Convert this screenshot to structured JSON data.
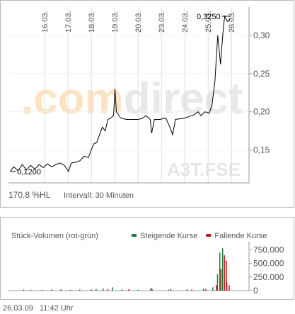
{
  "chart_data": [
    {
      "type": "line",
      "watermark": [
        ".com",
        "direct"
      ],
      "watermark_colors": [
        "#fbe3c4",
        "#e8e8e8"
      ],
      "symbol": "A3T.FSE",
      "info": [
        "170,8 %HL",
        "Intervall: 30 Minuten"
      ],
      "annotations": [
        "0,1200",
        "0,3250"
      ],
      "xlim": [
        -0.55,
        9.75
      ],
      "xticks": [
        {
          "value": 1,
          "label": "16.03."
        },
        {
          "value": 2,
          "label": "17.03."
        },
        {
          "value": 3,
          "label": "18.03."
        },
        {
          "value": 4,
          "label": "19.03."
        },
        {
          "value": 5,
          "label": "20.03."
        },
        {
          "value": 6,
          "label": "23.03."
        },
        {
          "value": 7,
          "label": "24.03."
        },
        {
          "value": 8,
          "label": "25.03."
        },
        {
          "value": 9,
          "label": "26.03."
        }
      ],
      "ylim": [
        0.107,
        0.337
      ],
      "yticks": [
        {
          "value": 0.15,
          "label": "0,15"
        },
        {
          "value": 0.2,
          "label": "0,20"
        },
        {
          "value": 0.25,
          "label": "0,25"
        },
        {
          "value": 0.3,
          "label": "0,30"
        }
      ],
      "grid": true,
      "series": [
        {
          "color": "#000000",
          "x": [
            -0.48,
            -0.33,
            -0.14,
            0.04,
            0.22,
            0.4,
            0.58,
            0.76,
            0.94,
            1.12,
            1.3,
            1.48,
            1.66,
            1.84,
            2.02,
            2.14,
            2.33,
            2.51,
            2.69,
            2.87,
            2.99,
            3.11,
            3.23,
            3.35,
            3.47,
            3.59,
            3.71,
            3.83,
            3.95,
            4.01,
            4.07,
            4.25,
            4.49,
            4.73,
            4.98,
            5.16,
            5.34,
            5.52,
            5.58,
            5.7,
            5.94,
            6.18,
            6.36,
            6.48,
            6.6,
            6.84,
            7.02,
            7.2,
            7.39,
            7.57,
            7.69,
            7.87,
            8.05,
            8.17,
            8.29,
            8.41,
            8.53,
            8.65,
            8.71,
            8.83,
            8.95
          ],
          "values": [
            0.122,
            0.128,
            0.123,
            0.131,
            0.124,
            0.13,
            0.125,
            0.131,
            0.127,
            0.132,
            0.128,
            0.131,
            0.133,
            0.13,
            0.122,
            0.133,
            0.134,
            0.136,
            0.142,
            0.14,
            0.15,
            0.158,
            0.16,
            0.17,
            0.18,
            0.175,
            0.19,
            0.192,
            0.195,
            0.23,
            0.2,
            0.192,
            0.19,
            0.19,
            0.19,
            0.191,
            0.195,
            0.19,
            0.172,
            0.19,
            0.19,
            0.192,
            0.18,
            0.17,
            0.19,
            0.191,
            0.192,
            0.194,
            0.196,
            0.2,
            0.195,
            0.2,
            0.198,
            0.21,
            0.24,
            0.3,
            0.262,
            0.31,
            0.325,
            0.318,
            0.322
          ]
        }
      ]
    },
    {
      "type": "bar",
      "title": "Stück-Volumen (rot-grün)",
      "xlim": [
        -0.55,
        9.75
      ],
      "ylim": [
        0,
        900000
      ],
      "yticks": [
        0,
        {
          "value": 250000,
          "label": "250.000"
        },
        {
          "value": 500000,
          "label": "500.000"
        },
        {
          "value": 750000,
          "label": "750.000"
        }
      ],
      "series": [
        {
          "name": "Steigende Kurse",
          "color": "#1a7a3a",
          "x": [
            0.1,
            0.9,
            1.7,
            2.5,
            3.2,
            3.5,
            3.9,
            4.3,
            5.0,
            5.6,
            6.3,
            7.1,
            7.8,
            8.2,
            8.4,
            8.5,
            8.62,
            8.8
          ],
          "values": [
            20000,
            15000,
            25000,
            20000,
            30000,
            40000,
            60000,
            20000,
            15000,
            30000,
            20000,
            25000,
            40000,
            60000,
            300000,
            700000,
            780000,
            150000
          ]
        },
        {
          "name": "Fallende Kurse",
          "color": "#c0161b",
          "x": [
            0.4,
            1.3,
            2.1,
            3.0,
            3.7,
            4.6,
            5.55,
            6.4,
            7.3,
            7.9,
            8.35,
            8.55,
            8.7,
            8.78,
            8.9
          ],
          "values": [
            15000,
            20000,
            15000,
            20000,
            30000,
            25000,
            50000,
            30000,
            20000,
            30000,
            100000,
            400000,
            650000,
            550000,
            100000
          ]
        }
      ]
    }
  ],
  "footer": "26.03.09   11:42 Uhr"
}
